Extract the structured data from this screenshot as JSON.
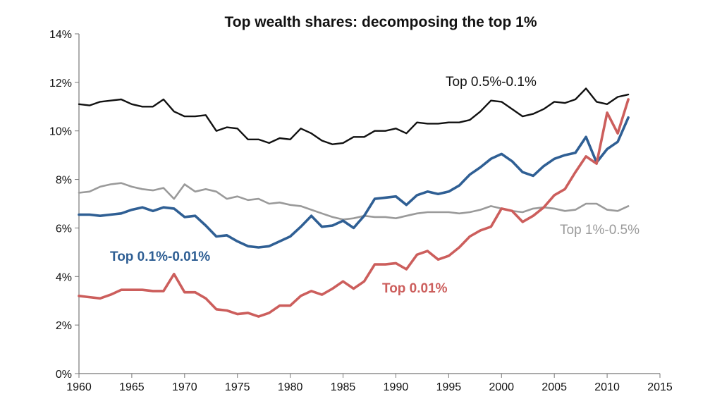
{
  "chart_data": {
    "type": "line",
    "title": "Top wealth shares: decomposing the top 1%",
    "xlabel": "",
    "ylabel": "",
    "xlim": [
      1960,
      2015
    ],
    "ylim": [
      0,
      14
    ],
    "x_ticks": [
      "1960",
      "1965",
      "1970",
      "1975",
      "1980",
      "1985",
      "1990",
      "1995",
      "2000",
      "2005",
      "2010",
      "2015"
    ],
    "y_ticks": [
      "0%",
      "2%",
      "4%",
      "6%",
      "8%",
      "10%",
      "12%",
      "14%"
    ],
    "grid": false,
    "legend": "inline labels",
    "years": [
      1960,
      1961,
      1962,
      1963,
      1964,
      1965,
      1966,
      1967,
      1968,
      1969,
      1970,
      1971,
      1972,
      1973,
      1974,
      1975,
      1976,
      1977,
      1978,
      1979,
      1980,
      1981,
      1982,
      1983,
      1984,
      1985,
      1986,
      1987,
      1988,
      1989,
      1990,
      1991,
      1992,
      1993,
      1994,
      1995,
      1996,
      1997,
      1998,
      1999,
      2000,
      2001,
      2002,
      2003,
      2004,
      2005,
      2006,
      2007,
      2008,
      2009,
      2010,
      2011,
      2012
    ],
    "series": [
      {
        "name": "Top 0.5%-0.1%",
        "color": "#111111",
        "values": [
          11.1,
          11.05,
          11.2,
          11.25,
          11.3,
          11.1,
          11.0,
          11.0,
          11.3,
          10.8,
          10.6,
          10.6,
          10.65,
          10.0,
          10.15,
          10.1,
          9.65,
          9.65,
          9.5,
          9.7,
          9.65,
          10.1,
          9.9,
          9.6,
          9.45,
          9.5,
          9.75,
          9.75,
          10.0,
          10.0,
          10.1,
          9.9,
          10.35,
          10.3,
          10.3,
          10.35,
          10.35,
          10.45,
          10.8,
          11.25,
          11.2,
          10.9,
          10.6,
          10.7,
          10.9,
          11.2,
          11.15,
          11.3,
          11.75,
          11.2,
          11.1,
          11.4,
          11.5
        ]
      },
      {
        "name": "Top 1%-0.5%",
        "color": "#9a9a9a",
        "values": [
          7.45,
          7.5,
          7.7,
          7.8,
          7.85,
          7.7,
          7.6,
          7.55,
          7.65,
          7.2,
          7.8,
          7.5,
          7.6,
          7.5,
          7.2,
          7.3,
          7.15,
          7.2,
          7.0,
          7.05,
          6.95,
          6.9,
          6.75,
          6.6,
          6.45,
          6.35,
          6.4,
          6.5,
          6.45,
          6.45,
          6.4,
          6.5,
          6.6,
          6.65,
          6.65,
          6.65,
          6.6,
          6.65,
          6.75,
          6.9,
          6.8,
          6.7,
          6.65,
          6.8,
          6.85,
          6.8,
          6.7,
          6.75,
          7.0,
          7.0,
          6.75,
          6.7,
          6.9
        ]
      },
      {
        "name": "Top 0.1%-0.01%",
        "color": "#2f5f94",
        "values": [
          6.55,
          6.55,
          6.5,
          6.55,
          6.6,
          6.75,
          6.85,
          6.7,
          6.85,
          6.8,
          6.45,
          6.5,
          6.1,
          5.65,
          5.7,
          5.45,
          5.25,
          5.2,
          5.25,
          5.45,
          5.65,
          6.05,
          6.5,
          6.05,
          6.1,
          6.3,
          6.0,
          6.5,
          7.2,
          7.25,
          7.3,
          6.95,
          7.35,
          7.5,
          7.4,
          7.5,
          7.75,
          8.2,
          8.5,
          8.85,
          9.05,
          8.75,
          8.3,
          8.15,
          8.55,
          8.85,
          9.0,
          9.1,
          9.75,
          8.7,
          9.25,
          9.55,
          10.55
        ]
      },
      {
        "name": "Top 0.01%",
        "color": "#cc5e5c",
        "values": [
          3.2,
          3.15,
          3.1,
          3.25,
          3.45,
          3.45,
          3.45,
          3.4,
          3.4,
          4.1,
          3.35,
          3.35,
          3.1,
          2.65,
          2.6,
          2.45,
          2.5,
          2.35,
          2.5,
          2.8,
          2.8,
          3.2,
          3.4,
          3.25,
          3.5,
          3.8,
          3.5,
          3.8,
          4.5,
          4.5,
          4.55,
          4.3,
          4.9,
          5.05,
          4.7,
          4.85,
          5.2,
          5.65,
          5.9,
          6.05,
          6.8,
          6.7,
          6.25,
          6.5,
          6.85,
          7.35,
          7.6,
          8.3,
          8.95,
          8.65,
          10.75,
          9.9,
          11.3
        ]
      }
    ]
  }
}
